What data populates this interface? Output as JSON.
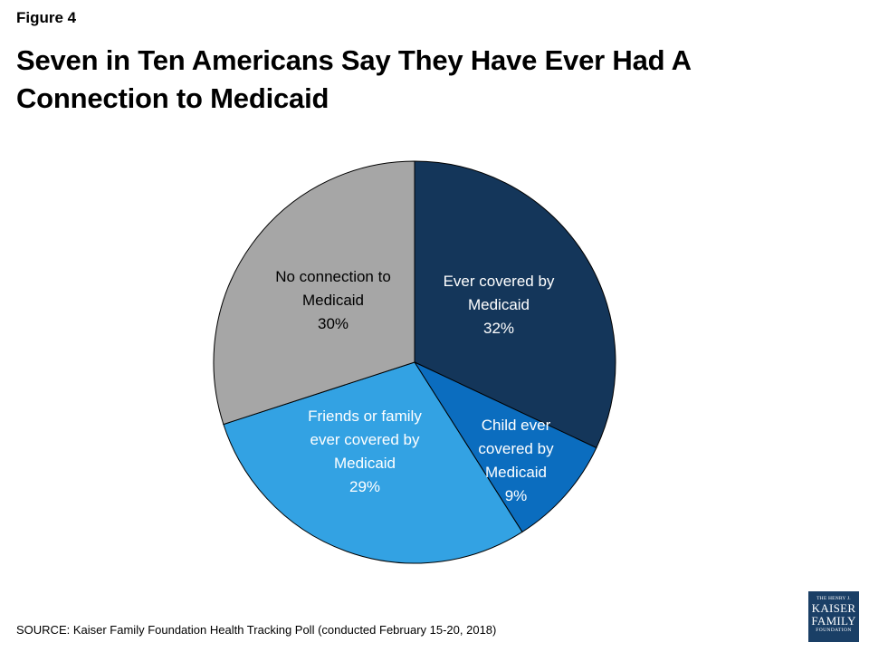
{
  "figure_label": "Figure 4",
  "title": "Seven in Ten Americans Say They Have Ever Had A Connection to Medicaid",
  "source": "SOURCE: Kaiser Family Foundation Health Tracking Poll (conducted February 15-20, 2018)",
  "logo": {
    "line1": "THE HENRY J.",
    "line2": "KAISER",
    "line3": "FAMILY",
    "line4": "FOUNDATION"
  },
  "chart_data": {
    "type": "pie",
    "title": "Seven in Ten Americans Say They Have Ever Had A Connection to Medicaid",
    "slices": [
      {
        "label_lines": [
          "Ever covered by",
          "Medicaid"
        ],
        "value": 32,
        "display": "32%",
        "color": "#14365a"
      },
      {
        "label_lines": [
          "Child ever",
          "covered by",
          "Medicaid"
        ],
        "value": 9,
        "display": "9%",
        "color": "#0b6dbf"
      },
      {
        "label_lines": [
          "Friends or family",
          "ever covered by",
          "Medicaid"
        ],
        "value": 29,
        "display": "29%",
        "color": "#33a2e3"
      },
      {
        "label_lines": [
          "No connection to",
          "Medicaid"
        ],
        "value": 30,
        "display": "30%",
        "color": "#a6a6a6"
      }
    ]
  }
}
